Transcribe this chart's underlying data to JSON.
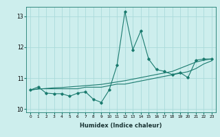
{
  "title": "",
  "xlabel": "Humidex (Indice chaleur)",
  "ylabel": "",
  "background_color": "#cdeeed",
  "line_color": "#1a7a6e",
  "grid_color": "#aadada",
  "x_values": [
    0,
    1,
    2,
    3,
    4,
    5,
    6,
    7,
    8,
    9,
    10,
    11,
    12,
    13,
    14,
    15,
    16,
    17,
    18,
    19,
    20,
    21,
    22,
    23
  ],
  "main_y": [
    10.62,
    10.72,
    10.52,
    10.5,
    10.5,
    10.42,
    10.52,
    10.56,
    10.32,
    10.22,
    10.62,
    11.42,
    13.15,
    11.92,
    12.52,
    11.62,
    11.28,
    11.22,
    11.12,
    11.18,
    11.02,
    11.58,
    11.62,
    11.62
  ],
  "trend1_y": [
    10.62,
    10.66,
    10.66,
    10.66,
    10.66,
    10.66,
    10.66,
    10.71,
    10.71,
    10.71,
    10.76,
    10.81,
    10.81,
    10.86,
    10.91,
    10.96,
    11.01,
    11.06,
    11.11,
    11.16,
    11.21,
    11.31,
    11.46,
    11.56
  ],
  "trend2_y": [
    10.62,
    10.65,
    10.67,
    10.69,
    10.7,
    10.72,
    10.74,
    10.76,
    10.78,
    10.8,
    10.84,
    10.88,
    10.92,
    10.97,
    11.02,
    11.07,
    11.12,
    11.17,
    11.22,
    11.32,
    11.42,
    11.52,
    11.58,
    11.62
  ],
  "ylim": [
    9.9,
    13.3
  ],
  "yticks": [
    10,
    11,
    12,
    13
  ],
  "xticks": [
    0,
    1,
    2,
    3,
    4,
    5,
    6,
    7,
    8,
    9,
    10,
    11,
    12,
    13,
    14,
    15,
    16,
    17,
    18,
    19,
    20,
    21,
    22,
    23
  ],
  "top_label": "13"
}
